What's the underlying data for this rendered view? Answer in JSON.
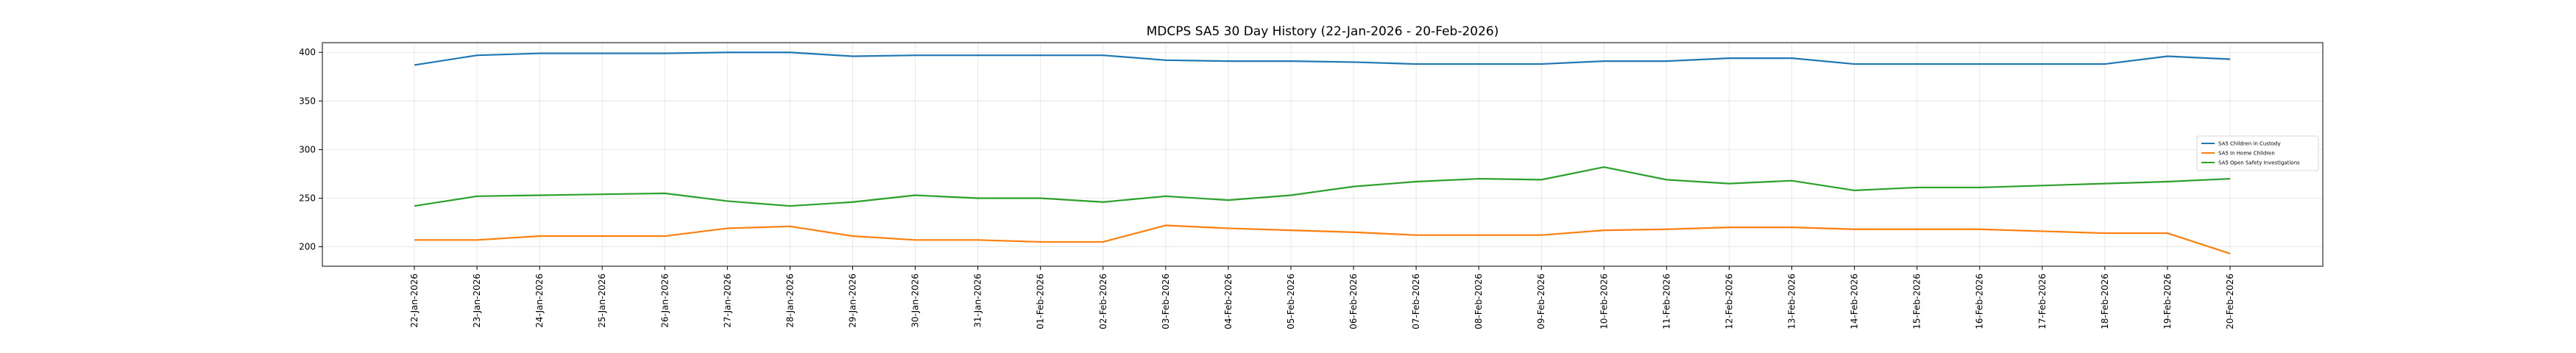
{
  "chart_data": {
    "type": "line",
    "title": "MDCPS SA5 30 Day History (22-Jan-2026 - 20-Feb-2026)",
    "xlabel": "",
    "ylabel": "",
    "ylim": [
      180,
      410
    ],
    "yticks": [
      200,
      250,
      300,
      350,
      400
    ],
    "grid": true,
    "legend_position": "center-right",
    "categories": [
      "22-Jan-2026",
      "23-Jan-2026",
      "24-Jan-2026",
      "25-Jan-2026",
      "26-Jan-2026",
      "27-Jan-2026",
      "28-Jan-2026",
      "29-Jan-2026",
      "30-Jan-2026",
      "31-Jan-2026",
      "01-Feb-2026",
      "02-Feb-2026",
      "03-Feb-2026",
      "04-Feb-2026",
      "05-Feb-2026",
      "06-Feb-2026",
      "07-Feb-2026",
      "08-Feb-2026",
      "09-Feb-2026",
      "10-Feb-2026",
      "11-Feb-2026",
      "12-Feb-2026",
      "13-Feb-2026",
      "14-Feb-2026",
      "15-Feb-2026",
      "16-Feb-2026",
      "17-Feb-2026",
      "18-Feb-2026",
      "19-Feb-2026",
      "20-Feb-2026"
    ],
    "series": [
      {
        "name": "SA5 Children in Custody",
        "color": "#1f77b4",
        "values": [
          387,
          397,
          399,
          399,
          399,
          400,
          400,
          396,
          397,
          397,
          397,
          397,
          392,
          391,
          391,
          390,
          388,
          388,
          388,
          391,
          391,
          394,
          394,
          388,
          388,
          388,
          388,
          388,
          396,
          393
        ]
      },
      {
        "name": "SA5 In Home Children",
        "color": "#ff7f0e",
        "values": [
          207,
          207,
          211,
          211,
          211,
          219,
          221,
          211,
          207,
          207,
          205,
          205,
          222,
          219,
          217,
          215,
          212,
          212,
          212,
          217,
          218,
          220,
          220,
          218,
          218,
          218,
          216,
          214,
          214,
          193
        ]
      },
      {
        "name": "SA5 Open Safety Investigations",
        "color": "#2ca02c",
        "values": [
          242,
          252,
          253,
          254,
          255,
          247,
          242,
          246,
          253,
          250,
          250,
          246,
          252,
          248,
          253,
          262,
          267,
          270,
          269,
          282,
          269,
          265,
          268,
          258,
          261,
          261,
          263,
          265,
          267,
          270
        ]
      }
    ]
  }
}
